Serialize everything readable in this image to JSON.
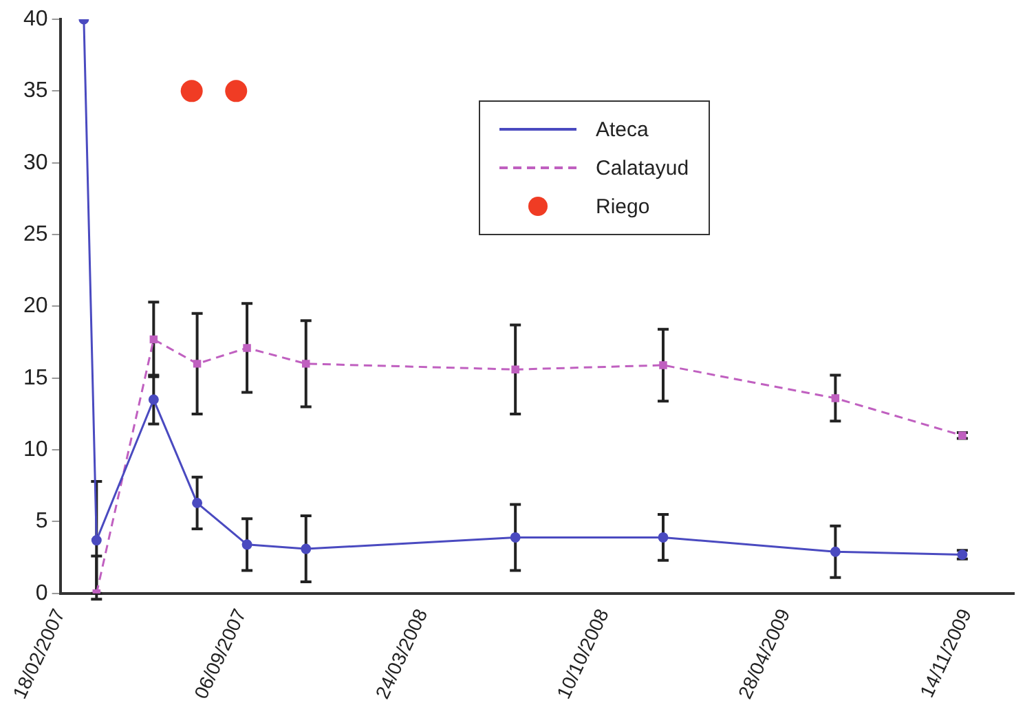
{
  "chart_data": {
    "type": "line",
    "xlim": [
      "2007-02-18",
      "2010-01-05"
    ],
    "xticks": [
      {
        "value": "2007-02-18",
        "label": "18/02/2007"
      },
      {
        "value": "2007-09-06",
        "label": "06/09/2007"
      },
      {
        "value": "2008-03-24",
        "label": "24/03/2008"
      },
      {
        "value": "2008-10-10",
        "label": "10/10/2008"
      },
      {
        "value": "2009-04-28",
        "label": "28/04/2009"
      },
      {
        "value": "2009-11-14",
        "label": "14/11/2009"
      }
    ],
    "ylim": [
      0,
      40
    ],
    "yticks": [
      0,
      5,
      10,
      15,
      20,
      25,
      30,
      35,
      40
    ],
    "grid": false,
    "legend": "top right",
    "series": [
      {
        "name": "Ateca",
        "type": "line",
        "color": "#4a4ac0",
        "line_style": "solid",
        "marker": "circle",
        "x": [
          "2007-03-16",
          "2007-03-30",
          "2007-06-01",
          "2007-07-19",
          "2007-09-12",
          "2007-11-16",
          "2008-07-04",
          "2008-12-14",
          "2009-06-22",
          "2009-11-09"
        ],
        "values": [
          40,
          3.7,
          13.5,
          6.3,
          3.4,
          3.1,
          3.9,
          3.9,
          2.9,
          2.7
        ],
        "errors": [
          null,
          4.1,
          1.7,
          1.8,
          1.8,
          2.3,
          2.3,
          1.6,
          1.8,
          0.3
        ]
      },
      {
        "name": "Calatayud",
        "type": "line",
        "color": "#c060c0",
        "line_style": "dashed",
        "marker": "square",
        "x": [
          "2007-03-30",
          "2007-06-01",
          "2007-07-19",
          "2007-09-12",
          "2007-11-16",
          "2008-07-04",
          "2008-12-14",
          "2009-06-22",
          "2009-11-09"
        ],
        "values": [
          0,
          17.7,
          16.0,
          17.1,
          16.0,
          15.6,
          15.9,
          13.6,
          11.0
        ],
        "errors": [
          [
            0,
            2.6
          ],
          2.6,
          3.5,
          3.1,
          3.0,
          3.1,
          2.5,
          1.6,
          0.2
        ]
      },
      {
        "name": "Riego",
        "type": "scatter",
        "color": "#f03c24",
        "marker": "circle",
        "x": [
          "2007-07-13",
          "2007-08-31"
        ],
        "values": [
          35,
          35
        ]
      }
    ]
  }
}
